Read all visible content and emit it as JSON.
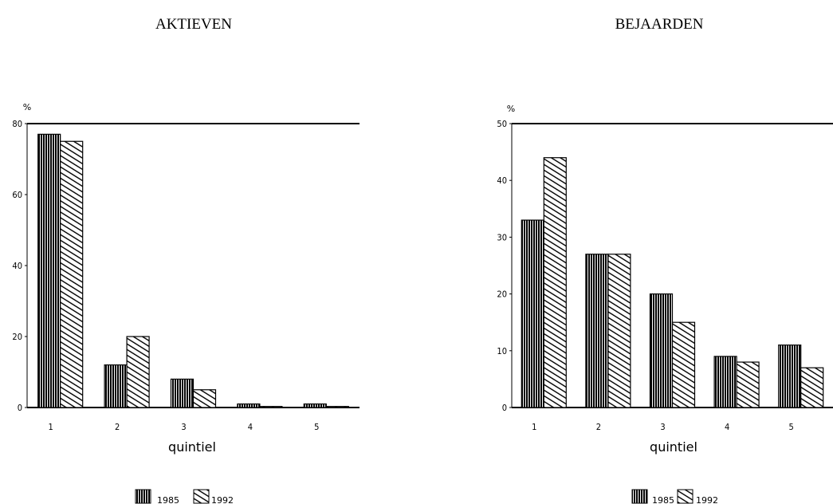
{
  "chart_data": [
    {
      "type": "bar",
      "title": "AKTIEVEN",
      "xlabel": "quintiel",
      "ylabel": "%",
      "ylim": [
        0,
        80
      ],
      "yticks": [
        "0",
        "20",
        "40",
        "60",
        "80"
      ],
      "categories": [
        "1",
        "2",
        "3",
        "4",
        "5"
      ],
      "series": [
        {
          "name": "1985",
          "values": [
            77,
            12,
            8,
            1,
            1
          ],
          "pattern": "vertical-lines"
        },
        {
          "name": "1992",
          "values": [
            75,
            20,
            5,
            0.3,
            0.3
          ],
          "pattern": "diagonal-hatch"
        }
      ],
      "legend": "bottom",
      "grid": false
    },
    {
      "type": "bar",
      "title": "BEJAARDEN",
      "xlabel": "quintiel",
      "ylabel": "%",
      "ylim": [
        0,
        50
      ],
      "yticks": [
        "0",
        "10",
        "20",
        "30",
        "40",
        "50"
      ],
      "categories": [
        "1",
        "2",
        "3",
        "4",
        "5"
      ],
      "series": [
        {
          "name": "1985",
          "values": [
            33,
            27,
            20,
            9,
            11
          ],
          "pattern": "vertical-lines"
        },
        {
          "name": "1992",
          "values": [
            44,
            27,
            15,
            8,
            7
          ],
          "pattern": "diagonal-hatch"
        }
      ],
      "legend": "bottom",
      "grid": false
    }
  ]
}
